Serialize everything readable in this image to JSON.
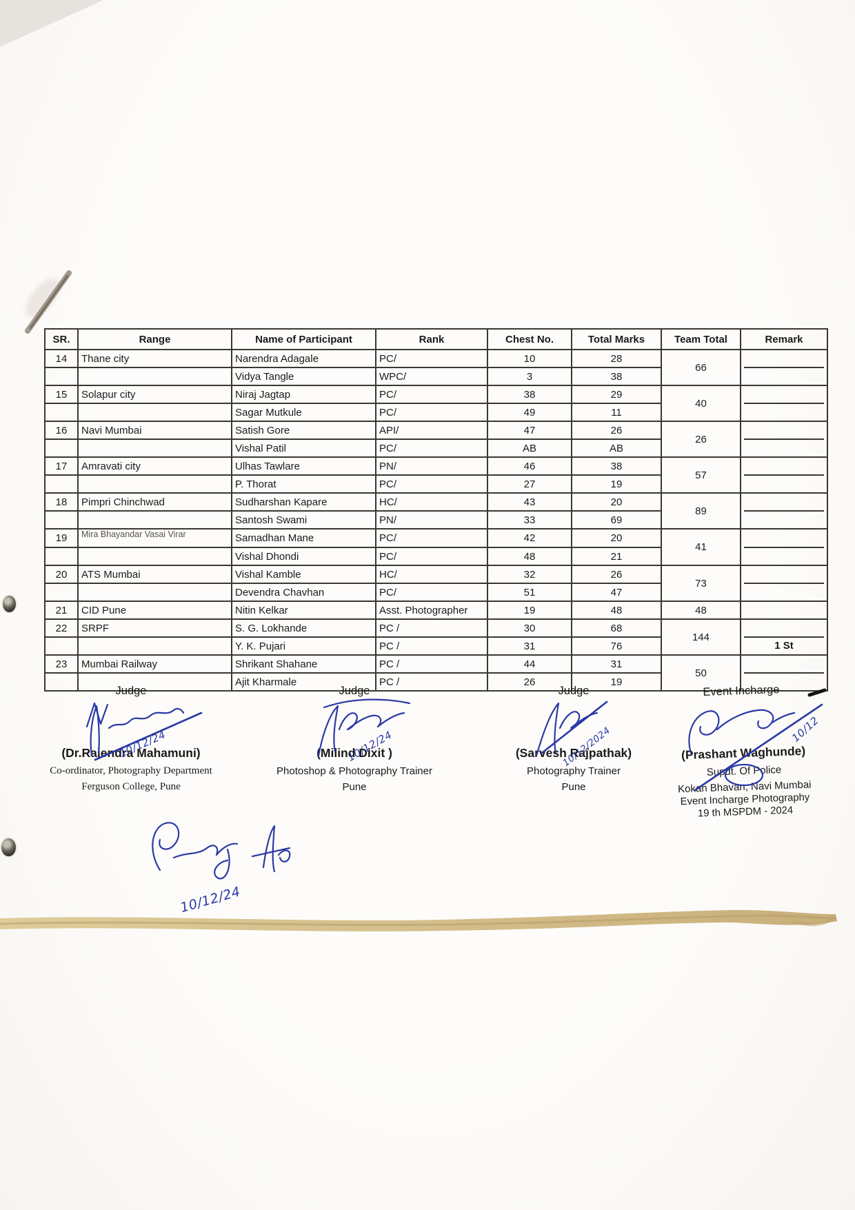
{
  "table": {
    "headers": [
      "SR.",
      "Range",
      "Name of Participant",
      "Rank",
      "Chest No.",
      "Total Marks",
      "Team Total",
      "Remark"
    ],
    "teams": [
      {
        "sr": "14",
        "range": "Thane city",
        "team_total": "66",
        "remark": "",
        "members": [
          {
            "name": "Narendra Adagale",
            "rank": "PC/",
            "chest": "10",
            "marks": "28"
          },
          {
            "name": "Vidya Tangle",
            "rank": "WPC/",
            "chest": "3",
            "marks": "38"
          }
        ]
      },
      {
        "sr": "15",
        "range": "Solapur city",
        "team_total": "40",
        "remark": "",
        "members": [
          {
            "name": "Niraj Jagtap",
            "rank": "PC/",
            "chest": "38",
            "marks": "29"
          },
          {
            "name": "Sagar Mutkule",
            "rank": "PC/",
            "chest": "49",
            "marks": "11"
          }
        ]
      },
      {
        "sr": "16",
        "range": "Navi Mumbai",
        "team_total": "26",
        "remark": "",
        "members": [
          {
            "name": "Satish Gore",
            "rank": "API/",
            "chest": "47",
            "marks": "26"
          },
          {
            "name": "Vishal Patil",
            "rank": "PC/",
            "chest": "AB",
            "marks": "AB"
          }
        ]
      },
      {
        "sr": "17",
        "range": "Amravati city",
        "team_total": "57",
        "remark": "",
        "members": [
          {
            "name": "Ulhas Tawlare",
            "rank": "PN/",
            "chest": "46",
            "marks": "38"
          },
          {
            "name": "P. Thorat",
            "rank": "PC/",
            "chest": "27",
            "marks": "19"
          }
        ]
      },
      {
        "sr": "18",
        "range": "Pimpri Chinchwad",
        "team_total": "89",
        "remark": "",
        "members": [
          {
            "name": "Sudharshan Kapare",
            "rank": "HC/",
            "chest": "43",
            "marks": "20"
          },
          {
            "name": "Santosh Swami",
            "rank": "PN/",
            "chest": "33",
            "marks": "69"
          }
        ]
      },
      {
        "sr": "19",
        "range": "Mira Bhayandar  Vasai Virar",
        "team_total": "41",
        "remark": "",
        "members": [
          {
            "name": "Samadhan Mane",
            "rank": "PC/",
            "chest": "42",
            "marks": "20"
          },
          {
            "name": "Vishal Dhondi",
            "rank": "PC/",
            "chest": "48",
            "marks": "21"
          }
        ]
      },
      {
        "sr": "20",
        "range": "ATS Mumbai",
        "team_total": "73",
        "remark": "",
        "members": [
          {
            "name": "Vishal Kamble",
            "rank": "HC/",
            "chest": "32",
            "marks": "26"
          },
          {
            "name": "Devendra Chavhan",
            "rank": "PC/",
            "chest": "51",
            "marks": "47"
          }
        ]
      },
      {
        "sr": "21",
        "range": "CID Pune",
        "team_total": "48",
        "remark": "",
        "members": [
          {
            "name": "Nitin Kelkar",
            "rank": "Asst. Photographer",
            "chest": "19",
            "marks": "48"
          }
        ]
      },
      {
        "sr": "22",
        "range": "SRPF",
        "team_total": "144",
        "remark": "1 St",
        "members": [
          {
            "name": "S. G. Lokhande",
            "rank": "PC /",
            "chest": "30",
            "marks": "68"
          },
          {
            "name": "Y. K. Pujari",
            "rank": "PC /",
            "chest": "31",
            "marks": "76"
          }
        ]
      },
      {
        "sr": "23",
        "range": "Mumbai Railway",
        "team_total": "50",
        "remark": "",
        "members": [
          {
            "name": "Shrikant Shahane",
            "rank": "PC /",
            "chest": "44",
            "marks": "31"
          },
          {
            "name": "Ajit Kharmale",
            "rank": "PC /",
            "chest": "26",
            "marks": "19"
          }
        ]
      }
    ]
  },
  "signatures": [
    {
      "title": "Judge",
      "date": "10/12/24",
      "name": "(Dr.Rajendra Mahamuni)",
      "line1": "Co-ordinator, Photography Department",
      "line2": "Ferguson College, Pune"
    },
    {
      "title": "Judge",
      "date": "10/12/24",
      "name": "(Milind Dixit )",
      "line1": "Photoshop & Photography Trainer",
      "line2": "Pune"
    },
    {
      "title": "Judge",
      "date": "10/12/2024",
      "name": "(Sarvesh Rajpathak)",
      "line1": "Photography Trainer",
      "line2": "Pune"
    },
    {
      "title": "Event Incharge",
      "date": "10/12",
      "name": "(Prashant Waghunde)",
      "line1": "Supdt. Of Police",
      "line2": "Kokan Bhavan, Navi Mumbai",
      "line3": "Event  Incharge Photography",
      "line4": "19 th MSPDM - 2024"
    }
  ],
  "extra_scribble": {
    "date": "10/12/24"
  },
  "colors": {
    "ink_blue": "#2b3aa6",
    "border": "#3a3733",
    "highlight_streak": "#cdb377"
  }
}
